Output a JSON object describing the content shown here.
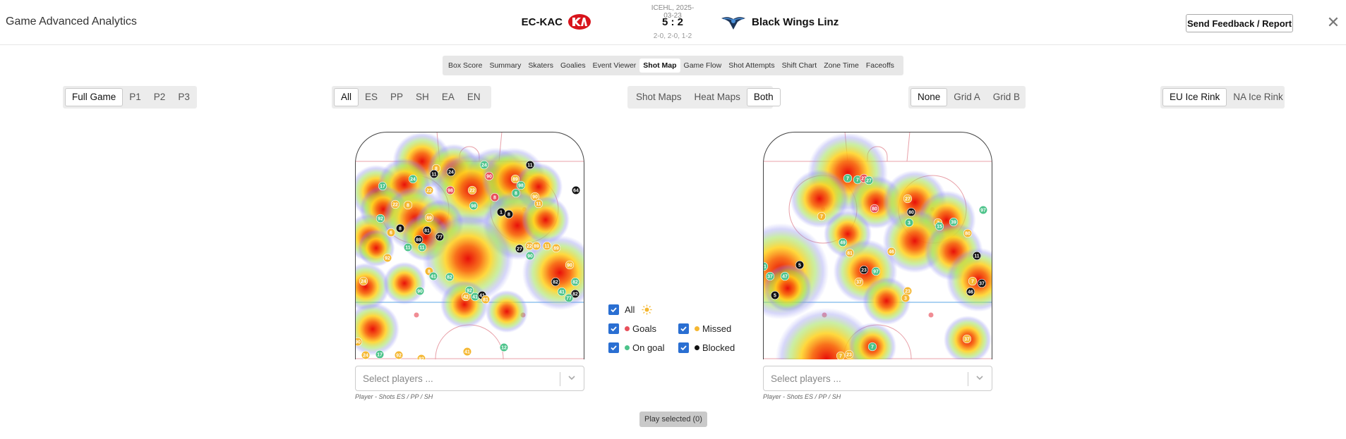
{
  "app_title": "Game Advanced Analytics",
  "game": {
    "league_date": "ICEHL, 2025-03-23",
    "home_team": "EC-KAC",
    "away_team": "Black Wings Linz",
    "score": "5 : 2",
    "period_scores": "2-0, 2-0, 1-2"
  },
  "header": {
    "feedback_label": "Send Feedback / Report",
    "close_icon": "close-icon"
  },
  "tabs": [
    {
      "label": "Box Score"
    },
    {
      "label": "Summary"
    },
    {
      "label": "Skaters"
    },
    {
      "label": "Goalies"
    },
    {
      "label": "Event Viewer"
    },
    {
      "label": "Shot Map",
      "active": true
    },
    {
      "label": "Game Flow"
    },
    {
      "label": "Shot Attempts"
    },
    {
      "label": "Shift Chart"
    },
    {
      "label": "Zone Time"
    },
    {
      "label": "Faceoffs"
    }
  ],
  "filters": {
    "period": {
      "options": [
        "Full Game",
        "P1",
        "P2",
        "P3"
      ],
      "selected": "Full Game"
    },
    "strength": {
      "options": [
        "All",
        "ES",
        "PP",
        "SH",
        "EA",
        "EN"
      ],
      "selected": "All"
    },
    "view": {
      "options": [
        "Shot Maps",
        "Heat Maps",
        "Both"
      ],
      "selected": "Both"
    },
    "grid": {
      "options": [
        "None",
        "Grid A",
        "Grid B"
      ],
      "selected": "None"
    },
    "rink": {
      "options": [
        "EU Ice Rink",
        "NA Ice Rink"
      ],
      "selected": "EU Ice Rink"
    }
  },
  "legend": {
    "all": "All",
    "goals": "Goals",
    "missed": "Missed",
    "on_goal": "On goal",
    "blocked": "Blocked",
    "sun_icon": "sun-icon",
    "colors": {
      "goals": "#e8505b",
      "missed": "#f5b731",
      "on_goal": "#4cc38a",
      "blocked": "#111111",
      "checkbox": "#2a6fd2"
    }
  },
  "rinks": [
    {
      "select_placeholder": "Select players ...",
      "caption": "Player - Shots ES / PP / SH",
      "shots": [
        {
          "n": "8",
          "t": "missed"
        },
        {
          "n": "24",
          "t": "ongoal"
        },
        {
          "n": "11",
          "t": "blocked"
        },
        {
          "n": "24",
          "t": "blocked"
        },
        {
          "n": "11",
          "t": "blocked"
        },
        {
          "n": "90",
          "t": "goal"
        },
        {
          "n": "89",
          "t": "missed"
        },
        {
          "n": "17",
          "t": "ongoal"
        },
        {
          "n": "24",
          "t": "ongoal"
        },
        {
          "n": "22",
          "t": "missed"
        },
        {
          "n": "98",
          "t": "goal"
        },
        {
          "n": "22",
          "t": "missed"
        },
        {
          "n": "8",
          "t": "goal"
        },
        {
          "n": "8",
          "t": "ongoal"
        },
        {
          "n": "90",
          "t": "missed"
        },
        {
          "n": "98",
          "t": "ongoal"
        },
        {
          "n": "64",
          "t": "blocked"
        },
        {
          "n": "22",
          "t": "missed"
        },
        {
          "n": "8",
          "t": "missed"
        },
        {
          "n": "98",
          "t": "ongoal"
        },
        {
          "n": "11",
          "t": "missed"
        },
        {
          "n": "1",
          "t": "blocked"
        },
        {
          "n": "8",
          "t": "blocked"
        },
        {
          "n": "89",
          "t": "missed"
        },
        {
          "n": "92",
          "t": "ongoal"
        },
        {
          "n": "8",
          "t": "blocked"
        },
        {
          "n": "6",
          "t": "missed"
        },
        {
          "n": "81",
          "t": "blocked"
        },
        {
          "n": "77",
          "t": "blocked"
        },
        {
          "n": "89",
          "t": "blocked"
        },
        {
          "n": "11",
          "t": "ongoal"
        },
        {
          "n": "11",
          "t": "ongoal"
        },
        {
          "n": "27",
          "t": "blocked"
        },
        {
          "n": "22",
          "t": "missed"
        },
        {
          "n": "89",
          "t": "missed"
        },
        {
          "n": "11",
          "t": "missed"
        },
        {
          "n": "89",
          "t": "missed"
        },
        {
          "n": "90",
          "t": "ongoal"
        },
        {
          "n": "92",
          "t": "missed"
        },
        {
          "n": "90",
          "t": "missed"
        },
        {
          "n": "8",
          "t": "missed"
        },
        {
          "n": "41",
          "t": "ongoal"
        },
        {
          "n": "82",
          "t": "ongoal"
        },
        {
          "n": "24",
          "t": "missed"
        },
        {
          "n": "90",
          "t": "ongoal"
        },
        {
          "n": "92",
          "t": "ongoal"
        },
        {
          "n": "42",
          "t": "missed"
        },
        {
          "n": "41",
          "t": "ongoal"
        },
        {
          "n": "41",
          "t": "blocked"
        },
        {
          "n": "81",
          "t": "missed"
        },
        {
          "n": "82",
          "t": "blocked"
        },
        {
          "n": "82",
          "t": "ongoal"
        },
        {
          "n": "41",
          "t": "ongoal"
        },
        {
          "n": "82",
          "t": "blocked"
        },
        {
          "n": "77",
          "t": "ongoal"
        },
        {
          "n": "90",
          "t": "missed"
        },
        {
          "n": "24",
          "t": "missed"
        },
        {
          "n": "17",
          "t": "ongoal"
        },
        {
          "n": "92",
          "t": "missed"
        },
        {
          "n": "92",
          "t": "missed"
        },
        {
          "n": "41",
          "t": "missed"
        },
        {
          "n": "12",
          "t": "ongoal"
        }
      ]
    },
    {
      "select_placeholder": "Select players ...",
      "caption": "Player - Shots ES / PP / SH",
      "shots": [
        {
          "n": "7",
          "t": "ongoal"
        },
        {
          "n": "7",
          "t": "ongoal"
        },
        {
          "n": "27",
          "t": "goal"
        },
        {
          "n": "27",
          "t": "ongoal"
        },
        {
          "n": "80",
          "t": "goal"
        },
        {
          "n": "27",
          "t": "missed"
        },
        {
          "n": "7",
          "t": "missed"
        },
        {
          "n": "80",
          "t": "blocked"
        },
        {
          "n": "3",
          "t": "ongoal"
        },
        {
          "n": "7",
          "t": "missed"
        },
        {
          "n": "15",
          "t": "ongoal"
        },
        {
          "n": "39",
          "t": "ongoal"
        },
        {
          "n": "97",
          "t": "ongoal"
        },
        {
          "n": "80",
          "t": "missed"
        },
        {
          "n": "49",
          "t": "ongoal"
        },
        {
          "n": "81",
          "t": "missed"
        },
        {
          "n": "46",
          "t": "missed"
        },
        {
          "n": "11",
          "t": "blocked"
        },
        {
          "n": "81",
          "t": "ongoal"
        },
        {
          "n": "5",
          "t": "blocked"
        },
        {
          "n": "37",
          "t": "ongoal"
        },
        {
          "n": "47",
          "t": "ongoal"
        },
        {
          "n": "23",
          "t": "blocked"
        },
        {
          "n": "97",
          "t": "ongoal"
        },
        {
          "n": "37",
          "t": "missed"
        },
        {
          "n": "7",
          "t": "missed"
        },
        {
          "n": "37",
          "t": "blocked"
        },
        {
          "n": "46",
          "t": "blocked"
        },
        {
          "n": "5",
          "t": "blocked"
        },
        {
          "n": "23",
          "t": "missed"
        },
        {
          "n": "3",
          "t": "missed"
        },
        {
          "n": "37",
          "t": "missed"
        },
        {
          "n": "7",
          "t": "ongoal"
        },
        {
          "n": "7",
          "t": "missed"
        },
        {
          "n": "23",
          "t": "missed"
        }
      ]
    }
  ],
  "play_button": "Play selected (0)"
}
